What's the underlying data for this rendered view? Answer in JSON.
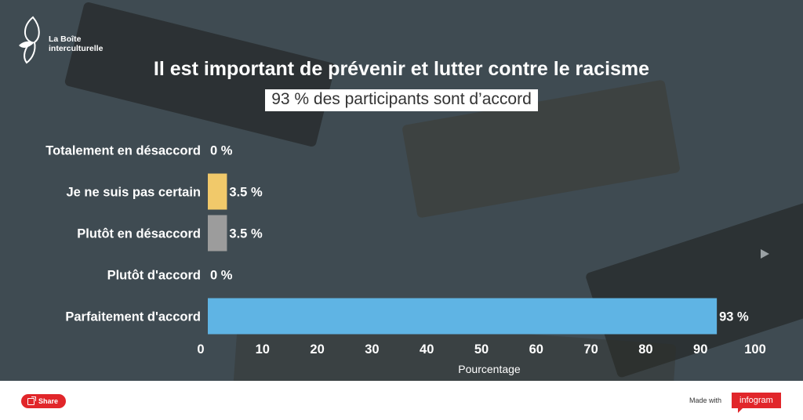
{
  "logo": {
    "line1": "La Boîte",
    "line2": "interculturelle"
  },
  "header": {
    "title": "Il est important de prévenir et lutter contre le racisme",
    "subtitle": "93 % des participants sont d’accord"
  },
  "chart_data": {
    "type": "bar",
    "orientation": "horizontal",
    "categories": [
      "Totalement en désaccord",
      "Je ne suis pas certain",
      "Plutôt en désaccord",
      "Plutôt d'accord",
      "Parfaitement d'accord"
    ],
    "values": [
      0,
      3.5,
      3.5,
      0,
      93
    ],
    "value_labels": [
      "0 %",
      "3.5 %",
      "3.5 %",
      "0 %",
      "93 %"
    ],
    "colors": [
      "#e05a4f",
      "#f1c96a",
      "#9c9c9c",
      "#7fbf6a",
      "#5fb4e4"
    ],
    "xlabel": "Pourcentage",
    "xlim": [
      0,
      100
    ],
    "xticks": [
      "0",
      "10",
      "20",
      "30",
      "40",
      "50",
      "60",
      "70",
      "80",
      "90",
      "100"
    ],
    "grid": false,
    "legend": "none"
  },
  "footer": {
    "share_label": "Share",
    "made_with": "Made with",
    "brand": "infogram"
  }
}
